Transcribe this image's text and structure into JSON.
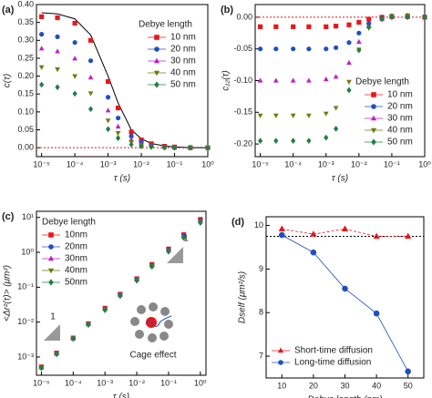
{
  "chart_data": [
    {
      "type": "scatter",
      "panel_label": "(a)",
      "xlabel": "τ (s)",
      "ylabel": "c(τ)",
      "xlog": true,
      "xlim": [
        7e-06,
        1
      ],
      "ylim": [
        -0.025,
        0.4
      ],
      "xticks": [
        {
          "value": 1e-05,
          "label": "10⁻⁵"
        },
        {
          "value": 0.0001,
          "label": "10⁻⁴"
        },
        {
          "value": 0.001,
          "label": "10⁻³"
        },
        {
          "value": 0.01,
          "label": "10⁻²"
        },
        {
          "value": 0.1,
          "label": "10⁻¹"
        },
        {
          "value": 1,
          "label": "10⁰"
        }
      ],
      "yticks": [
        {
          "value": 0,
          "label": "0.00"
        },
        {
          "value": 0.05,
          "label": "0.05"
        },
        {
          "value": 0.1,
          "label": "0.10"
        },
        {
          "value": 0.15,
          "label": "0.15"
        },
        {
          "value": 0.2,
          "label": "0.20"
        },
        {
          "value": 0.25,
          "label": "0.25"
        },
        {
          "value": 0.3,
          "label": "0.30"
        },
        {
          "value": 0.35,
          "label": "0.35"
        },
        {
          "value": 0.4,
          "label": "0.40"
        }
      ],
      "legend_title": "Debye length",
      "legend": "upper right",
      "reference_line": {
        "value": 0,
        "color": "#e8161b"
      },
      "x": [
        1e-05,
        3e-05,
        0.0001,
        0.0003,
        0.001,
        0.002,
        0.005,
        0.01,
        0.02,
        0.05,
        0.1,
        0.3,
        1
      ],
      "fit": {
        "color": "#000000",
        "values": [
          0.377,
          0.374,
          0.36,
          0.315,
          0.2,
          0.125,
          0.05,
          0.025,
          0.012,
          0.005,
          0.002,
          0,
          0
        ]
      },
      "series": [
        {
          "name": "10 nm",
          "color": "#e8161b",
          "marker": "square",
          "values": [
            0.366,
            0.363,
            0.348,
            0.3,
            0.185,
            0.111,
            0.044,
            0.022,
            0.011,
            0.004,
            0.002,
            0,
            0
          ]
        },
        {
          "name": "20 nm",
          "color": "#2050c0",
          "marker": "circle",
          "values": [
            0.317,
            0.31,
            0.294,
            0.243,
            0.141,
            0.083,
            0.032,
            0.016,
            0.006,
            0.003,
            0,
            0,
            0
          ]
        },
        {
          "name": "30 nm",
          "color": "#c020c0",
          "marker": "triangle-up",
          "values": [
            0.277,
            0.269,
            0.249,
            0.196,
            0.104,
            0.059,
            0.022,
            0.011,
            0.006,
            0.003,
            0,
            0,
            0
          ]
        },
        {
          "name": "40 nm",
          "color": "#707a10",
          "marker": "triangle-down",
          "values": [
            0.225,
            0.219,
            0.2,
            0.152,
            0.076,
            0.041,
            0.016,
            0.007,
            0.002,
            0,
            0,
            0,
            0
          ]
        },
        {
          "name": "50 nm",
          "color": "#208040",
          "marker": "diamond",
          "values": [
            0.176,
            0.169,
            0.151,
            0.108,
            0.052,
            0.027,
            0.009,
            0.004,
            0.002,
            0,
            0,
            0,
            0
          ]
        }
      ]
    },
    {
      "type": "scatter",
      "panel_label": "(b)",
      "xlabel": "τ (s)",
      "ylabel": "c₁₂(τ)",
      "xlog": true,
      "xlim": [
        7e-06,
        1
      ],
      "ylim": [
        -0.22,
        0.02
      ],
      "xticks": [
        {
          "value": 1e-05,
          "label": "10⁻⁵"
        },
        {
          "value": 0.0001,
          "label": "10⁻⁴"
        },
        {
          "value": 0.001,
          "label": "10⁻³"
        },
        {
          "value": 0.01,
          "label": "10⁻²"
        },
        {
          "value": 0.1,
          "label": "10⁻¹"
        },
        {
          "value": 1,
          "label": "10⁰"
        }
      ],
      "yticks": [
        {
          "value": -0.2,
          "label": "-0.20"
        },
        {
          "value": -0.15,
          "label": "-0.15"
        },
        {
          "value": -0.1,
          "label": "-0.10"
        },
        {
          "value": -0.05,
          "label": "-0.05"
        },
        {
          "value": 0,
          "label": "0.00"
        }
      ],
      "legend_title": "Debye length",
      "legend": "lower right",
      "reference_line": {
        "value": 0,
        "color": "#e8161b"
      },
      "x": [
        1e-05,
        3e-05,
        0.0001,
        0.0003,
        0.001,
        0.002,
        0.005,
        0.01,
        0.02,
        0.05,
        0.1,
        0.3,
        1
      ],
      "series": [
        {
          "name": "10 nm",
          "color": "#e8161b",
          "marker": "square",
          "values": [
            -0.015,
            -0.015,
            -0.015,
            -0.015,
            -0.015,
            -0.014,
            -0.012,
            -0.008,
            -0.003,
            0,
            0.001,
            0.001,
            0
          ]
        },
        {
          "name": "20 nm",
          "color": "#2050c0",
          "marker": "circle",
          "values": [
            -0.05,
            -0.05,
            -0.05,
            -0.05,
            -0.05,
            -0.048,
            -0.04,
            -0.025,
            -0.01,
            -0.002,
            0.002,
            0.002,
            0.001
          ]
        },
        {
          "name": "30 nm",
          "color": "#c020c0",
          "marker": "triangle-up",
          "values": [
            -0.1,
            -0.1,
            -0.1,
            -0.1,
            -0.098,
            -0.094,
            -0.072,
            -0.039,
            -0.014,
            -0.003,
            0.002,
            0.003,
            0.001
          ]
        },
        {
          "name": "40 nm",
          "color": "#707a10",
          "marker": "triangle-down",
          "values": [
            -0.155,
            -0.155,
            -0.155,
            -0.155,
            -0.152,
            -0.143,
            -0.102,
            -0.051,
            -0.017,
            -0.003,
            0.002,
            0.003,
            0
          ]
        },
        {
          "name": "50 nm",
          "color": "#208040",
          "marker": "diamond",
          "values": [
            -0.195,
            -0.195,
            -0.195,
            -0.195,
            -0.19,
            -0.176,
            -0.115,
            -0.052,
            -0.016,
            -0.003,
            0,
            0,
            0
          ]
        }
      ]
    },
    {
      "type": "scatter",
      "panel_label": "(c)",
      "xlabel": "τ (s)",
      "ylabel": "<Δr²(τ)> (μm²)",
      "xlog": true,
      "ylog": true,
      "xlim": [
        7e-06,
        1.5
      ],
      "ylim": [
        0.0003,
        15
      ],
      "xticks": [
        {
          "value": 1e-05,
          "label": "10⁻⁵"
        },
        {
          "value": 0.0001,
          "label": "10⁻⁴"
        },
        {
          "value": 0.001,
          "label": "10⁻³"
        },
        {
          "value": 0.01,
          "label": "10⁻²"
        },
        {
          "value": 0.1,
          "label": "10⁻¹"
        },
        {
          "value": 1,
          "label": "10⁰"
        }
      ],
      "yticks": [
        {
          "value": 0.001,
          "label": "10⁻³"
        },
        {
          "value": 0.01,
          "label": "10⁻²"
        },
        {
          "value": 0.1,
          "label": "10⁻¹"
        },
        {
          "value": 1,
          "label": "10⁰"
        },
        {
          "value": 10,
          "label": "10¹"
        }
      ],
      "legend_title": "Debye length",
      "legend": "upper left",
      "annotations": [
        "1",
        "1",
        "Cage effect"
      ],
      "x": [
        1e-05,
        3e-05,
        0.0001,
        0.0003,
        0.001,
        0.003,
        0.01,
        0.03,
        0.1,
        0.3,
        1
      ],
      "series": [
        {
          "name": "10nm",
          "color": "#e8161b",
          "marker": "square",
          "values": [
            0.00052,
            0.0013,
            0.0035,
            0.009,
            0.025,
            0.063,
            0.175,
            0.45,
            1.25,
            3.2,
            8.8
          ]
        },
        {
          "name": "20nm",
          "color": "#2050c0",
          "marker": "circle",
          "values": [
            0.0005,
            0.00126,
            0.00346,
            0.0088,
            0.024,
            0.061,
            0.17,
            0.43,
            1.2,
            3,
            8.2
          ]
        },
        {
          "name": "30nm",
          "color": "#c020c0",
          "marker": "triangle-up",
          "values": [
            0.0005,
            0.00126,
            0.00346,
            0.0087,
            0.024,
            0.06,
            0.166,
            0.417,
            1.15,
            2.88,
            7.9
          ]
        },
        {
          "name": "40nm",
          "color": "#707a10",
          "marker": "triangle-down",
          "values": [
            0.00049,
            0.00123,
            0.0034,
            0.0085,
            0.023,
            0.058,
            0.16,
            0.4,
            1.1,
            2.75,
            7.5
          ]
        },
        {
          "name": "50nm",
          "color": "#208040",
          "marker": "diamond",
          "values": [
            0.00048,
            0.0012,
            0.0033,
            0.0083,
            0.022,
            0.056,
            0.155,
            0.39,
            1.05,
            2.6,
            7
          ]
        }
      ]
    },
    {
      "type": "line",
      "panel_label": "(d)",
      "xlabel": "Debye length (nm)",
      "ylabel": "Dself (μm²/s)",
      "xlim": [
        5,
        55
      ],
      "ylim": [
        6.5,
        10.2
      ],
      "xticks": [
        10,
        20,
        30,
        40,
        50
      ],
      "yticks": [
        7,
        8,
        9,
        10
      ],
      "legend": "lower left",
      "reference_line": {
        "value": 9.75,
        "color": "#000000"
      },
      "x": [
        10,
        20,
        30,
        40,
        50
      ],
      "series": [
        {
          "name": "Short-time diffusion",
          "color": "#e8161b",
          "marker": "triangle-up",
          "values": [
            9.92,
            9.8,
            9.92,
            9.75,
            9.75
          ]
        },
        {
          "name": "Long-time diffusion",
          "color": "#2050c0",
          "marker": "circle",
          "values": [
            9.78,
            9.38,
            8.55,
            7.98,
            6.65
          ]
        }
      ]
    }
  ]
}
